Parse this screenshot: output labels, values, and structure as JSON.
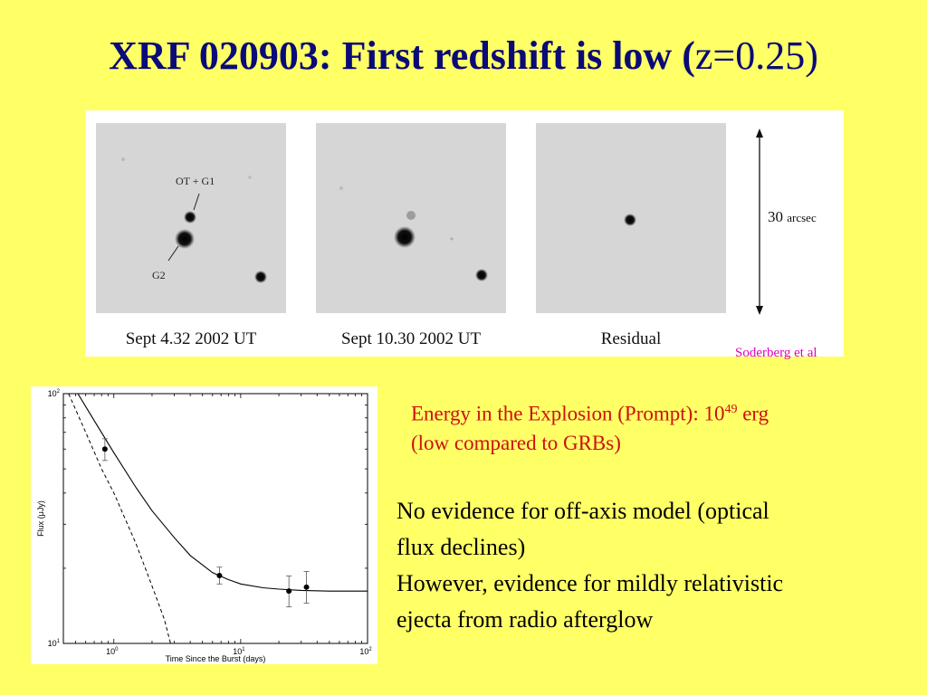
{
  "slide": {
    "title_main": "XRF 020903: First redshift is low (",
    "title_z": "z=0.25)"
  },
  "observations": {
    "panels": [
      {
        "caption": "Sept 4.32 2002 UT"
      },
      {
        "caption": "Sept 10.30 2002 UT"
      },
      {
        "caption": "Residual"
      }
    ],
    "label_ot_g1": "OT + G1",
    "label_g2": "G2",
    "scale_value": "30",
    "scale_unit": "arcsec"
  },
  "credit": "Soderberg et al",
  "chart_data": {
    "type": "scatter",
    "title": "",
    "xlabel": "Time Since the Burst  (days)",
    "ylabel": "Flux  (μJy)",
    "x_scale": "log",
    "y_scale": "log",
    "xlim": [
      0.4,
      100
    ],
    "ylim": [
      10,
      100
    ],
    "x_ticks": [
      {
        "base": "10",
        "exp": "0",
        "value": 1
      },
      {
        "base": "10",
        "exp": "1",
        "value": 10
      },
      {
        "base": "10",
        "exp": "2",
        "value": 100
      }
    ],
    "y_ticks": [
      {
        "base": "10",
        "exp": "1",
        "value": 10
      },
      {
        "base": "10",
        "exp": "2",
        "value": 100
      }
    ],
    "points": [
      {
        "x": 0.85,
        "y": 60,
        "yerr_low": 54,
        "yerr_high": 66
      },
      {
        "x": 6.8,
        "y": 18.7,
        "yerr_low": 17.3,
        "yerr_high": 20.2
      },
      {
        "x": 24,
        "y": 16.2,
        "yerr_low": 14.0,
        "yerr_high": 18.6
      },
      {
        "x": 33,
        "y": 16.8,
        "yerr_low": 14.5,
        "yerr_high": 19.4
      }
    ],
    "model_solid": [
      [
        0.52,
        100
      ],
      [
        0.7,
        78
      ],
      [
        1,
        58
      ],
      [
        1.5,
        42
      ],
      [
        2,
        34
      ],
      [
        3,
        26.5
      ],
      [
        4,
        22.5
      ],
      [
        6,
        19.2
      ],
      [
        8,
        18
      ],
      [
        10,
        17.3
      ],
      [
        15,
        16.7
      ],
      [
        20,
        16.5
      ],
      [
        30,
        16.3
      ],
      [
        50,
        16.2
      ],
      [
        100,
        16.2
      ]
    ],
    "model_dashed": [
      [
        0.44,
        100
      ],
      [
        0.6,
        70
      ],
      [
        0.8,
        50
      ],
      [
        1,
        40
      ],
      [
        1.5,
        25
      ],
      [
        2,
        17
      ],
      [
        2.5,
        12.5
      ],
      [
        2.8,
        10
      ]
    ]
  },
  "energy_text": {
    "line1": "Energy in the Explosion (Prompt): 10",
    "exponent": "49",
    "unit": " erg",
    "line2": "(low compared to GRBs)"
  },
  "notes": {
    "l1": "No evidence for off-axis model (optical",
    "l2": "flux declines)",
    "l3": "However, evidence for mildly relativistic",
    "l4": "ejecta from radio afterglow"
  }
}
